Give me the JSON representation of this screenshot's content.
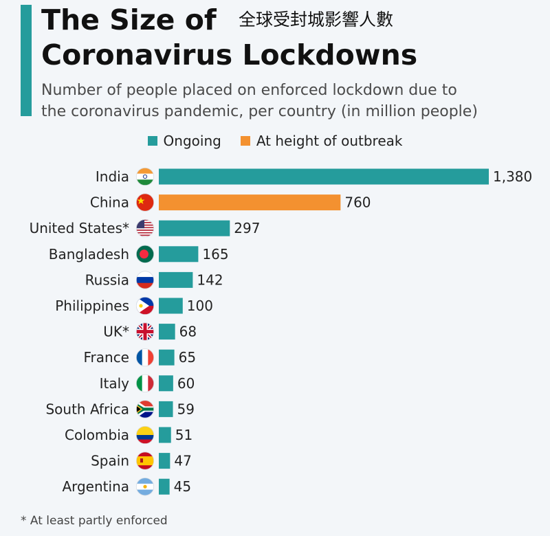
{
  "header": {
    "title_line1": "The Size of",
    "title_line2": "Coronavirus Lockdowns",
    "title_cn": "全球受封城影響人數",
    "subtitle_line1": "Number of people placed on enforced lockdown due to",
    "subtitle_line2": "the coronavirus pandemic, per country (in million people)"
  },
  "legend": [
    {
      "label": "Ongoing",
      "color": "#259c9c"
    },
    {
      "label": "At height of outbreak",
      "color": "#f39130"
    }
  ],
  "footnote": "* At least partly enforced",
  "chart_data": {
    "type": "bar",
    "orientation": "horizontal",
    "title": "The Size of Coronavirus Lockdowns",
    "xlabel": "million people",
    "ylabel": "",
    "xlim": [
      0,
      1380
    ],
    "categories": [
      "India",
      "China",
      "United States*",
      "Bangladesh",
      "Russia",
      "Philippines",
      "UK*",
      "France",
      "Italy",
      "South Africa",
      "Colombia",
      "Spain",
      "Argentina"
    ],
    "values": [
      1380,
      760,
      297,
      165,
      142,
      100,
      68,
      65,
      60,
      59,
      51,
      47,
      45
    ],
    "value_labels": [
      "1,380",
      "760",
      "297",
      "165",
      "142",
      "100",
      "68",
      "65",
      "60",
      "59",
      "51",
      "47",
      "45"
    ],
    "status": [
      "Ongoing",
      "At height of outbreak",
      "Ongoing",
      "Ongoing",
      "Ongoing",
      "Ongoing",
      "Ongoing",
      "Ongoing",
      "Ongoing",
      "Ongoing",
      "Ongoing",
      "Ongoing",
      "Ongoing"
    ],
    "flags": [
      "india-flag-icon",
      "china-flag-icon",
      "usa-flag-icon",
      "bangladesh-flag-icon",
      "russia-flag-icon",
      "philippines-flag-icon",
      "uk-flag-icon",
      "france-flag-icon",
      "italy-flag-icon",
      "south-africa-flag-icon",
      "colombia-flag-icon",
      "spain-flag-icon",
      "argentina-flag-icon"
    ]
  }
}
